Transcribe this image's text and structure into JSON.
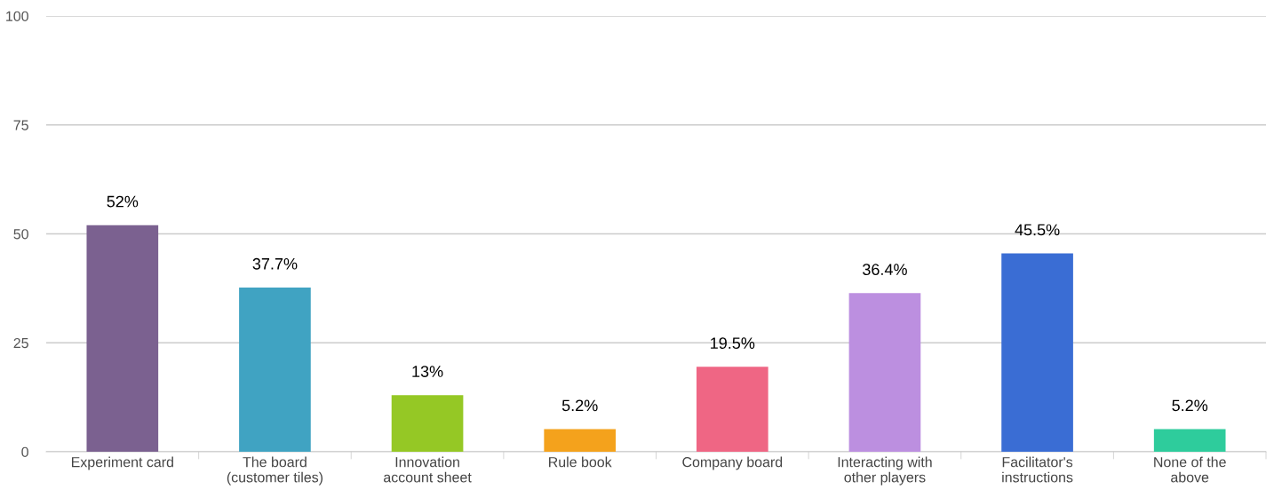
{
  "chart_data": {
    "type": "bar",
    "categories": [
      "Experiment card",
      "The board\n(customer tiles)",
      "Innovation\naccount sheet",
      "Rule book",
      "Company board",
      "Interacting with\nother players",
      "Facilitator's\ninstructions",
      "None of the\nabove"
    ],
    "values": [
      52,
      37.7,
      13,
      5.2,
      19.5,
      36.4,
      45.5,
      5.2
    ],
    "value_labels": [
      "52%",
      "37.7%",
      "13%",
      "5.2%",
      "19.5%",
      "36.4%",
      "45.5%",
      "5.2%"
    ],
    "colors": [
      "#7b6190",
      "#40a3c2",
      "#95c825",
      "#f4a21c",
      "#ef6684",
      "#bc8fe0",
      "#3a6dd4",
      "#2ecc9c"
    ],
    "ylim": [
      0,
      100
    ],
    "yticks": [
      0,
      25,
      50,
      75,
      100
    ],
    "grid": "y",
    "legend": false
  }
}
